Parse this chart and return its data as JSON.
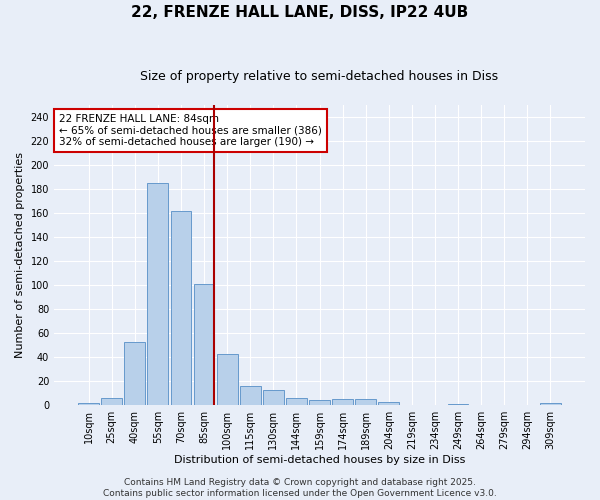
{
  "title": "22, FRENZE HALL LANE, DISS, IP22 4UB",
  "subtitle": "Size of property relative to semi-detached houses in Diss",
  "xlabel": "Distribution of semi-detached houses by size in Diss",
  "ylabel": "Number of semi-detached properties",
  "categories": [
    "10sqm",
    "25sqm",
    "40sqm",
    "55sqm",
    "70sqm",
    "85sqm",
    "100sqm",
    "115sqm",
    "130sqm",
    "144sqm",
    "159sqm",
    "174sqm",
    "189sqm",
    "204sqm",
    "219sqm",
    "234sqm",
    "249sqm",
    "264sqm",
    "279sqm",
    "294sqm",
    "309sqm"
  ],
  "values": [
    2,
    6,
    53,
    185,
    162,
    101,
    43,
    16,
    13,
    6,
    4,
    5,
    5,
    3,
    0,
    0,
    1,
    0,
    0,
    0,
    2
  ],
  "bar_color": "#b8d0ea",
  "bar_edge_color": "#6699cc",
  "property_bar_index": 5,
  "annotation_text_line1": "22 FRENZE HALL LANE: 84sqm",
  "annotation_text_line2": "← 65% of semi-detached houses are smaller (386)",
  "annotation_text_line3": "32% of semi-detached houses are larger (190) →",
  "vline_color": "#aa0000",
  "annotation_box_edge_color": "#cc0000",
  "annotation_box_face_color": "#ffffff",
  "ylim": [
    0,
    250
  ],
  "yticks": [
    0,
    20,
    40,
    60,
    80,
    100,
    120,
    140,
    160,
    180,
    200,
    220,
    240
  ],
  "background_color": "#e8eef8",
  "grid_color": "#ffffff",
  "footer_line1": "Contains HM Land Registry data © Crown copyright and database right 2025.",
  "footer_line2": "Contains public sector information licensed under the Open Government Licence v3.0.",
  "title_fontsize": 11,
  "subtitle_fontsize": 9,
  "axis_label_fontsize": 8,
  "tick_fontsize": 7,
  "annotation_fontsize": 7.5,
  "footer_fontsize": 6.5
}
